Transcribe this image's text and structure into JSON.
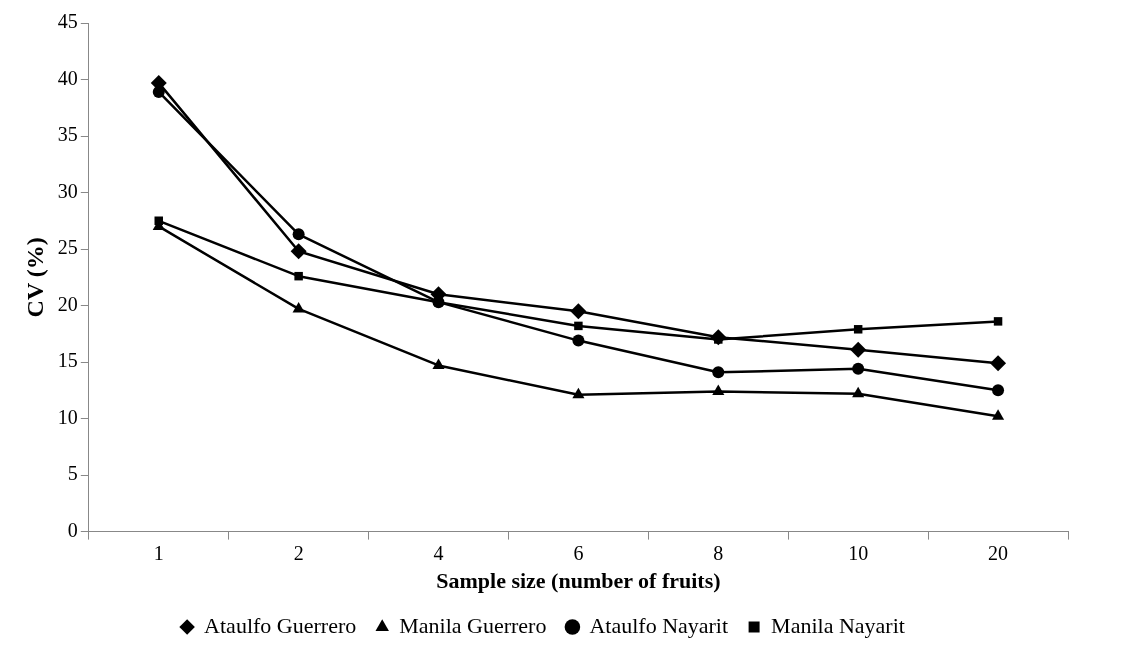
{
  "chart_data": {
    "type": "line",
    "xlabel": "Sample size (number of fruits)",
    "ylabel": "CV (%)",
    "categories": [
      "1",
      "2",
      "4",
      "6",
      "8",
      "10",
      "20"
    ],
    "series": [
      {
        "name": "Ataulfo Guerrero",
        "color": "#000000",
        "marker": "diamond",
        "values": [
          39.7,
          24.8,
          21.0,
          19.5,
          17.2,
          16.1,
          14.9
        ]
      },
      {
        "name": "Manila Guerrero",
        "color": "#000000",
        "marker": "triangle",
        "values": [
          27.0,
          19.7,
          14.7,
          12.1,
          12.4,
          12.2,
          10.2
        ]
      },
      {
        "name": "Ataulfo Nayarit",
        "color": "#000000",
        "marker": "circle",
        "values": [
          38.9,
          26.3,
          20.3,
          16.9,
          14.1,
          14.4,
          12.5
        ]
      },
      {
        "name": "Manila Nayarit",
        "color": "#000000",
        "marker": "square",
        "values": [
          27.5,
          22.6,
          20.3,
          18.2,
          17.0,
          17.9,
          18.6
        ]
      }
    ],
    "ylim": [
      0,
      45
    ],
    "yticks": [
      0,
      5,
      10,
      15,
      20,
      25,
      30,
      35,
      40,
      45
    ],
    "grid": false,
    "legend": "bottom"
  }
}
